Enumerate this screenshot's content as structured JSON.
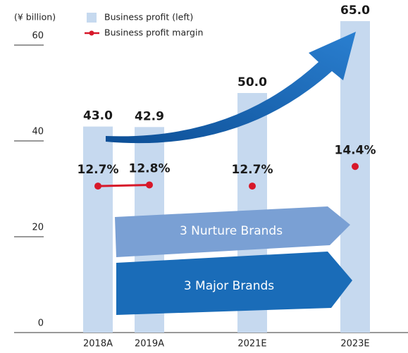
{
  "chart_data": {
    "type": "bar",
    "y_axis_label": "(¥ billion)",
    "categories": [
      "2018A",
      "2019A",
      null,
      "2021E",
      null,
      "2023E"
    ],
    "series": [
      {
        "name": "Business profit (left)",
        "type": "bar",
        "color": "#c6d9ef",
        "values": [
          43.0,
          42.9,
          null,
          50.0,
          null,
          65.0
        ],
        "value_labels": [
          "43.0",
          "42.9",
          null,
          "50.0",
          null,
          "65.0"
        ]
      },
      {
        "name": "Business profit margin",
        "type": "line",
        "axis": "y2",
        "color": "#d7182a",
        "values": [
          12.7,
          12.8,
          null,
          12.7,
          null,
          14.4
        ],
        "value_labels": [
          "12.7%",
          "12.8%",
          null,
          "12.7%",
          null,
          "14.4%"
        ]
      }
    ],
    "ylim": [
      0,
      65
    ],
    "yticks": [
      0,
      20,
      40,
      60
    ],
    "y2lim": [
      0,
      27
    ],
    "annotations": [
      "3 Nurture Brands",
      "3 Major Brands"
    ]
  }
}
